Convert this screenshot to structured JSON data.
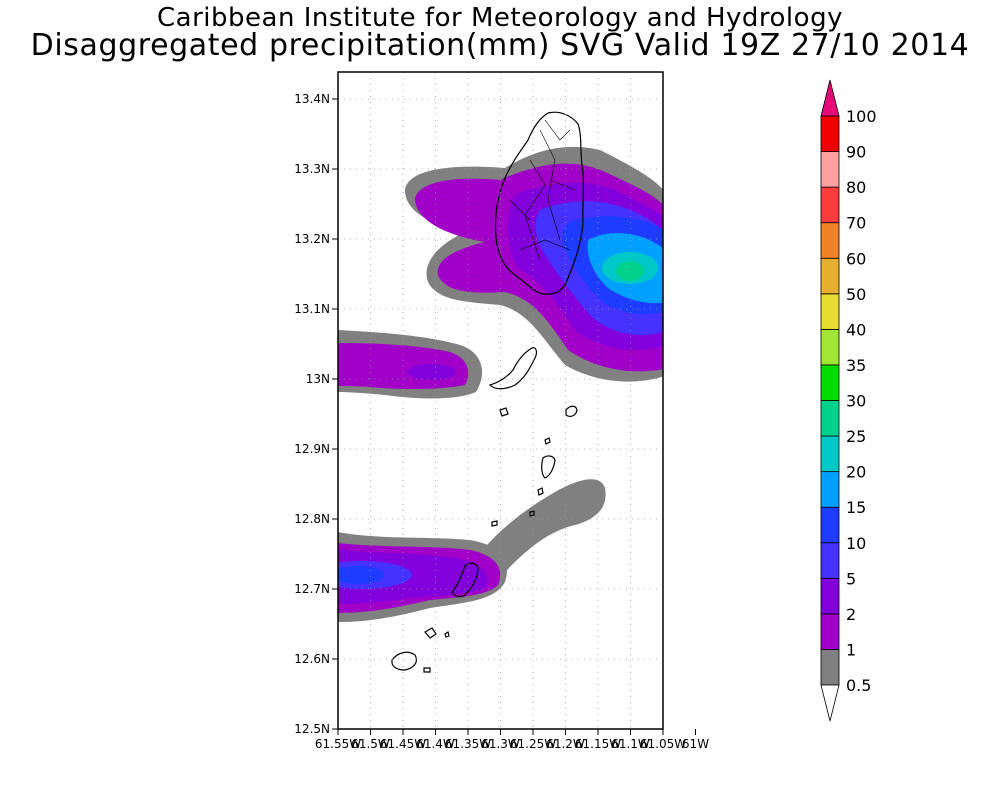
{
  "header": {
    "title": "Caribbean Institute for Meteorology and Hydrology",
    "subtitle": "Disaggregated precipitation(mm) SVG Valid 19Z 27/10 2014"
  },
  "map": {
    "lat_range": [
      12.5,
      13.44
    ],
    "lon_range": [
      -61.55,
      -61.0
    ],
    "lat_ticks": [
      "13.4N",
      "13.3N",
      "13.2N",
      "13.1N",
      "13N",
      "12.9N",
      "12.8N",
      "12.7N",
      "12.6N",
      "12.5N"
    ],
    "lon_ticks": [
      "61.55W",
      "61.5W",
      "61.45W",
      "61.4W",
      "61.35W",
      "61.3W",
      "61.25W",
      "61.2W",
      "61.15W",
      "61.1W",
      "61.05W",
      "61W"
    ],
    "grid": true
  },
  "colorbar": {
    "levels": [
      {
        "label": "0.5",
        "color": "#808080"
      },
      {
        "label": "1",
        "color": "#a000c8"
      },
      {
        "label": "2",
        "color": "#8200dc"
      },
      {
        "label": "5",
        "color": "#4632ff"
      },
      {
        "label": "10",
        "color": "#1e3cff"
      },
      {
        "label": "15",
        "color": "#00a0ff"
      },
      {
        "label": "20",
        "color": "#00c8c8"
      },
      {
        "label": "25",
        "color": "#00d28c"
      },
      {
        "label": "30",
        "color": "#00dc00"
      },
      {
        "label": "35",
        "color": "#a0e632"
      },
      {
        "label": "40",
        "color": "#e6dc32"
      },
      {
        "label": "50",
        "color": "#e6af2d"
      },
      {
        "label": "60",
        "color": "#f08228"
      },
      {
        "label": "70",
        "color": "#fa3c3c"
      },
      {
        "label": "80",
        "color": "#ffa0a0"
      },
      {
        "label": "90",
        "color": "#f00000"
      },
      {
        "label": "100",
        "color": "#fa3c3c"
      }
    ],
    "over_color": "#e60a78"
  }
}
